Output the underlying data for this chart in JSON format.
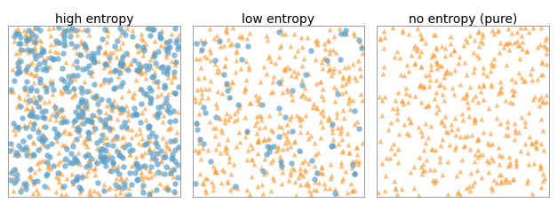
{
  "titles": [
    "high entropy",
    "low entropy",
    "no entropy (pure)"
  ],
  "n_high_orange": 500,
  "n_high_blue": 450,
  "n_low_orange": 450,
  "n_low_blue": 65,
  "n_pure_orange": 420,
  "n_pure_blue": 0,
  "orange_color": "#f5a040",
  "blue_color": "#5b9fc8",
  "marker_orange": "^",
  "marker_blue": "o",
  "marker_size_orange": 18,
  "marker_size_blue": 22,
  "alpha_orange": 0.65,
  "alpha_blue": 0.7,
  "seed_high": 42,
  "seed_low": 7,
  "seed_pure": 99,
  "xlim": [
    0,
    1
  ],
  "ylim": [
    0,
    1
  ],
  "figsize": [
    6.27,
    2.3
  ],
  "dpi": 100,
  "title_fontsize": 10
}
